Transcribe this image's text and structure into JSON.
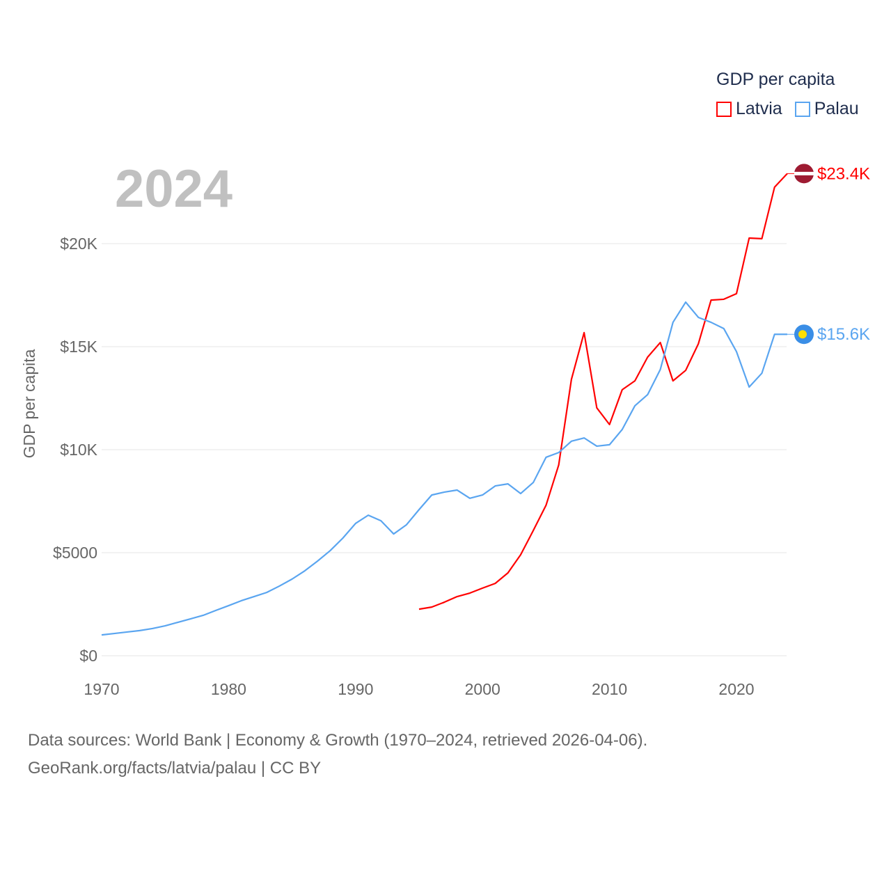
{
  "chart_data": {
    "type": "line",
    "title": "GDP per capita",
    "ylabel": "GDP per capita",
    "xlabel": "",
    "xlim": [
      1970,
      2024
    ],
    "ylim": [
      0,
      24000
    ],
    "x_ticks": [
      1970,
      1980,
      1990,
      2000,
      2010,
      2020
    ],
    "x_tick_labels": [
      "1970",
      "1980",
      "1990",
      "2000",
      "2010",
      "2020"
    ],
    "y_ticks": [
      0,
      5000,
      10000,
      15000,
      20000
    ],
    "y_tick_labels": [
      "$0",
      "$5000",
      "$10K",
      "$15K",
      "$20K"
    ],
    "grid": true,
    "legend_placement": "top-right",
    "year_label": "2024",
    "series": [
      {
        "name": "Latvia",
        "color": "#ff0000",
        "end_label": "$23.4K",
        "x": [
          1995,
          1996,
          1997,
          1998,
          1999,
          2000,
          2001,
          2002,
          2003,
          2004,
          2005,
          2006,
          2007,
          2008,
          2009,
          2010,
          2011,
          2012,
          2013,
          2014,
          2015,
          2016,
          2017,
          2018,
          2019,
          2020,
          2021,
          2022,
          2023,
          2024
        ],
        "values": [
          2260,
          2360,
          2600,
          2870,
          3040,
          3280,
          3510,
          4020,
          4900,
          6080,
          7300,
          9260,
          13410,
          15680,
          12030,
          11220,
          12910,
          13340,
          14490,
          15200,
          13340,
          13850,
          15140,
          17260,
          17300,
          17570,
          20270,
          20240,
          22740,
          23400
        ]
      },
      {
        "name": "Palau",
        "color": "#5aa5f0",
        "end_label": "$15.6K",
        "x": [
          1970,
          1971,
          1972,
          1973,
          1974,
          1975,
          1976,
          1977,
          1978,
          1979,
          1980,
          1981,
          1982,
          1983,
          1984,
          1985,
          1986,
          1987,
          1988,
          1989,
          1990,
          1991,
          1992,
          1993,
          1994,
          1995,
          1996,
          1997,
          1998,
          1999,
          2000,
          2001,
          2002,
          2003,
          2004,
          2005,
          2006,
          2007,
          2008,
          2009,
          2010,
          2011,
          2012,
          2013,
          2014,
          2015,
          2016,
          2017,
          2018,
          2019,
          2020,
          2021,
          2022,
          2023,
          2024
        ],
        "values": [
          1010,
          1080,
          1150,
          1220,
          1320,
          1450,
          1620,
          1790,
          1960,
          2200,
          2430,
          2670,
          2870,
          3070,
          3380,
          3720,
          4120,
          4590,
          5100,
          5710,
          6420,
          6820,
          6550,
          5910,
          6350,
          7090,
          7800,
          7940,
          8040,
          7640,
          7800,
          8240,
          8340,
          7870,
          8410,
          9630,
          9860,
          10410,
          10570,
          10170,
          10240,
          10980,
          12130,
          12670,
          13890,
          16180,
          17160,
          16420,
          16180,
          15880,
          14760,
          13040,
          13710,
          15600,
          15600
        ]
      }
    ]
  },
  "source": {
    "line1": "Data sources: World Bank | Economy & Growth (1970–2024, retrieved 2026-04-06).",
    "line2": "GeoRank.org/facts/latvia/palau | CC BY"
  }
}
